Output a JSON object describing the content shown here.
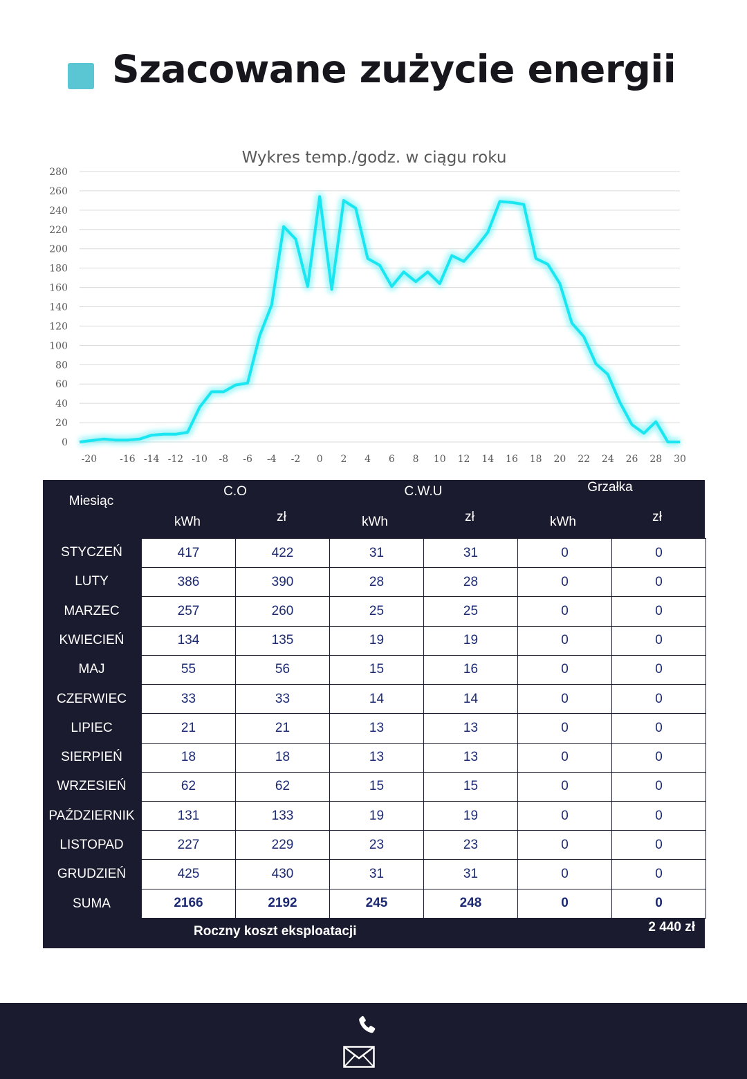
{
  "page": {
    "title": "Szacowane zużycie energii",
    "accent_color": "#5bc6d3",
    "dark_color": "#1a1b2e"
  },
  "chart_data": {
    "type": "line",
    "title": "Wykres temp./godz. w ciągu roku",
    "xlabel": "",
    "ylabel": "",
    "xlim": [
      -20,
      30
    ],
    "ylim": [
      0,
      280
    ],
    "x_ticks": [
      -20,
      -16,
      -14,
      -12,
      -10,
      -8,
      -6,
      -4,
      -2,
      0,
      2,
      4,
      6,
      8,
      10,
      12,
      14,
      16,
      18,
      20,
      22,
      24,
      26,
      28,
      30
    ],
    "y_ticks": [
      0,
      20,
      40,
      60,
      80,
      100,
      120,
      140,
      160,
      180,
      200,
      220,
      240,
      260,
      280
    ],
    "grid": true,
    "line_color": "#19e6f0",
    "series": [
      {
        "x": [
          -20,
          -18,
          -17,
          -16,
          -15,
          -14,
          -13,
          -12,
          -11,
          -10,
          -9,
          -8,
          -7,
          -6,
          -5,
          -4,
          -3,
          -2,
          -1,
          0,
          1,
          2,
          3,
          4,
          5,
          6,
          7,
          8,
          9,
          10,
          11,
          12,
          13,
          14,
          15,
          16,
          17,
          18,
          19,
          20,
          21,
          22,
          23,
          24,
          25,
          26,
          27,
          28,
          29,
          30
        ],
        "y": [
          0,
          3,
          2,
          2,
          3,
          7,
          8,
          8,
          10,
          36,
          52,
          52,
          59,
          61,
          110,
          142,
          223,
          210,
          161,
          254,
          158,
          250,
          242,
          190,
          183,
          161,
          176,
          166,
          176,
          164,
          193,
          187,
          201,
          217,
          249,
          248,
          246,
          190,
          184,
          164,
          123,
          109,
          81,
          70,
          41,
          18,
          9,
          21,
          0,
          0
        ]
      }
    ]
  },
  "table": {
    "month_header": "Miesiąc",
    "groups": [
      "C.O",
      "C.W.U",
      "Grzałka"
    ],
    "units": [
      "kWh",
      "zł",
      "kWh",
      "zł",
      "kWh",
      "zł"
    ],
    "rows": [
      {
        "month": "STYCZEŃ",
        "values": [
          "417",
          "422",
          "31",
          "31",
          "0",
          "0"
        ]
      },
      {
        "month": "LUTY",
        "values": [
          "386",
          "390",
          "28",
          "28",
          "0",
          "0"
        ]
      },
      {
        "month": "MARZEC",
        "values": [
          "257",
          "260",
          "25",
          "25",
          "0",
          "0"
        ]
      },
      {
        "month": "KWIECIEŃ",
        "values": [
          "134",
          "135",
          "19",
          "19",
          "0",
          "0"
        ]
      },
      {
        "month": "MAJ",
        "values": [
          "55",
          "56",
          "15",
          "16",
          "0",
          "0"
        ]
      },
      {
        "month": "CZERWIEC",
        "values": [
          "33",
          "33",
          "14",
          "14",
          "0",
          "0"
        ]
      },
      {
        "month": "LIPIEC",
        "values": [
          "21",
          "21",
          "13",
          "13",
          "0",
          "0"
        ]
      },
      {
        "month": "SIERPIEŃ",
        "values": [
          "18",
          "18",
          "13",
          "13",
          "0",
          "0"
        ]
      },
      {
        "month": "WRZESIEŃ",
        "values": [
          "62",
          "62",
          "15",
          "15",
          "0",
          "0"
        ]
      },
      {
        "month": "PAŹDZIERNIK",
        "values": [
          "131",
          "133",
          "19",
          "19",
          "0",
          "0"
        ]
      },
      {
        "month": "LISTOPAD",
        "values": [
          "227",
          "229",
          "23",
          "23",
          "0",
          "0"
        ]
      },
      {
        "month": "GRUDZIEŃ",
        "values": [
          "425",
          "430",
          "31",
          "31",
          "0",
          "0"
        ]
      }
    ],
    "sum": {
      "month": "SUMA",
      "values": [
        "2166",
        "2192",
        "245",
        "248",
        "0",
        "0"
      ]
    },
    "annual_label": "Roczny koszt eksploatacji",
    "annual_value": "2 440 zł"
  },
  "footer": {
    "icons": [
      "phone-icon",
      "mail-icon"
    ]
  }
}
